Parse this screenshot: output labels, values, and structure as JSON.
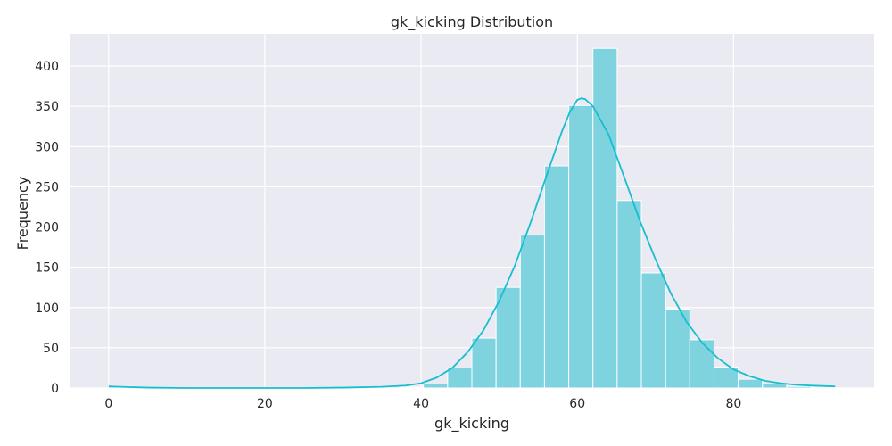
{
  "chart_data": {
    "type": "histogram",
    "title": "gk_kicking Distribution",
    "xlabel": "gk_kicking",
    "ylabel": "Frequency",
    "xlim": [
      -5,
      98
    ],
    "ylim": [
      0,
      440
    ],
    "x_ticks": [
      0,
      20,
      40,
      60,
      80
    ],
    "y_ticks": [
      0,
      50,
      100,
      150,
      200,
      250,
      300,
      350,
      400
    ],
    "grid": true,
    "bar_color": "#7fd3df",
    "kde_color": "#17becf",
    "background_color": "#eaeaf2",
    "bins": [
      {
        "x0": 0.0,
        "x1": 3.1,
        "count": 2
      },
      {
        "x0": 3.1,
        "x1": 6.2,
        "count": 0
      },
      {
        "x0": 6.2,
        "x1": 9.3,
        "count": 0
      },
      {
        "x0": 9.3,
        "x1": 12.4,
        "count": 0
      },
      {
        "x0": 12.4,
        "x1": 15.5,
        "count": 0
      },
      {
        "x0": 15.5,
        "x1": 18.6,
        "count": 0
      },
      {
        "x0": 18.6,
        "x1": 21.7,
        "count": 0
      },
      {
        "x0": 21.7,
        "x1": 24.8,
        "count": 0
      },
      {
        "x0": 24.8,
        "x1": 27.9,
        "count": 0
      },
      {
        "x0": 27.9,
        "x1": 31.0,
        "count": 0
      },
      {
        "x0": 31.0,
        "x1": 34.1,
        "count": 0
      },
      {
        "x0": 34.1,
        "x1": 37.2,
        "count": 0
      },
      {
        "x0": 37.2,
        "x1": 40.3,
        "count": 1
      },
      {
        "x0": 40.3,
        "x1": 43.4,
        "count": 5
      },
      {
        "x0": 43.4,
        "x1": 46.5,
        "count": 25
      },
      {
        "x0": 46.5,
        "x1": 49.6,
        "count": 62
      },
      {
        "x0": 49.6,
        "x1": 52.7,
        "count": 125
      },
      {
        "x0": 52.7,
        "x1": 55.8,
        "count": 190
      },
      {
        "x0": 55.8,
        "x1": 58.9,
        "count": 276
      },
      {
        "x0": 58.9,
        "x1": 62.0,
        "count": 351
      },
      {
        "x0": 62.0,
        "x1": 65.1,
        "count": 422
      },
      {
        "x0": 65.1,
        "x1": 68.2,
        "count": 233
      },
      {
        "x0": 68.2,
        "x1": 71.3,
        "count": 143
      },
      {
        "x0": 71.3,
        "x1": 74.4,
        "count": 98
      },
      {
        "x0": 74.4,
        "x1": 77.5,
        "count": 60
      },
      {
        "x0": 77.5,
        "x1": 80.6,
        "count": 26
      },
      {
        "x0": 80.6,
        "x1": 83.7,
        "count": 11
      },
      {
        "x0": 83.7,
        "x1": 86.8,
        "count": 5
      },
      {
        "x0": 86.8,
        "x1": 89.9,
        "count": 2
      },
      {
        "x0": 89.9,
        "x1": 93.0,
        "count": 1
      }
    ],
    "kde": {
      "x": [
        0,
        5,
        10,
        15,
        20,
        25,
        30,
        35,
        38,
        40,
        42,
        44,
        46,
        48,
        50,
        52,
        54,
        56,
        58,
        59,
        60,
        60.5,
        61,
        62,
        64,
        66,
        68,
        70,
        72,
        74,
        76,
        78,
        80,
        82,
        84,
        86,
        88,
        90,
        93
      ],
      "y": [
        2,
        0.5,
        0,
        0,
        0,
        0,
        0.5,
        1.5,
        3,
        6,
        13,
        25,
        45,
        72,
        108,
        152,
        205,
        262,
        318,
        342,
        358,
        360,
        359,
        350,
        315,
        262,
        208,
        160,
        117,
        82,
        56,
        37,
        23,
        15,
        9,
        6,
        4,
        3,
        2
      ]
    }
  }
}
